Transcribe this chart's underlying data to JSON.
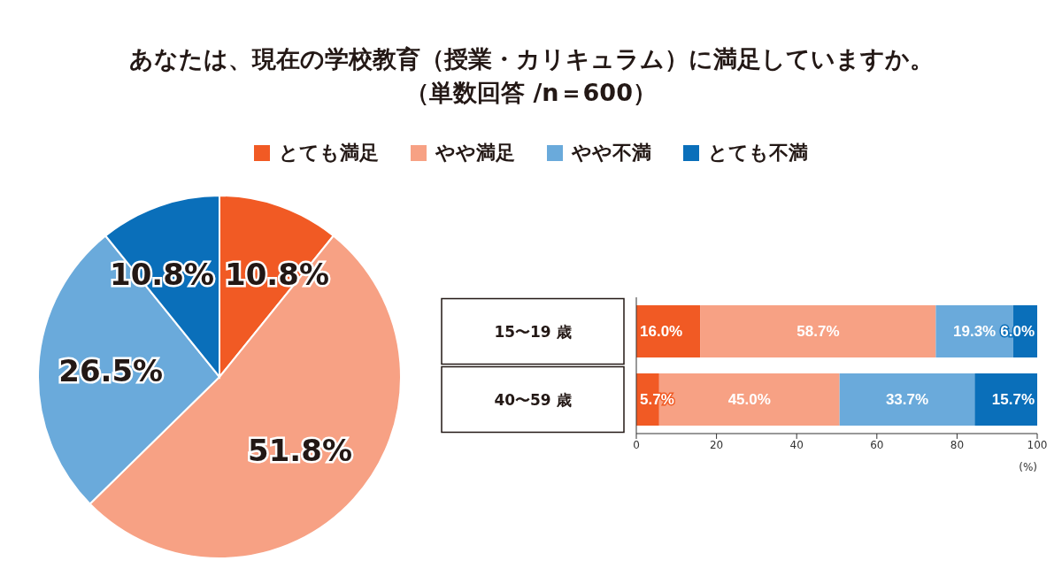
{
  "chart_data": [
    {
      "type": "pie",
      "title": "あなたは、現在の学校教育（授業・カリキュラム）に満足していますか。",
      "subtitle": "（単数回答 /n＝600）",
      "categories": [
        "とても満足",
        "やや満足",
        "やや不満",
        "とても不満"
      ],
      "values": [
        10.8,
        51.8,
        26.5,
        10.8
      ],
      "value_labels": [
        "10.8%",
        "51.8%",
        "26.5%",
        "10.8%"
      ],
      "colors": [
        "#f15a24",
        "#f7a184",
        "#6aaadb",
        "#0a6fba"
      ],
      "legend": "top"
    },
    {
      "type": "bar",
      "orientation": "horizontal",
      "stacked": true,
      "categories": [
        "15〜19 歳",
        "40〜59 歳"
      ],
      "xlabel": "(%)",
      "xlim": [
        0,
        100
      ],
      "xticks": [
        0,
        20,
        40,
        60,
        80,
        100
      ],
      "series": [
        {
          "color": "#f15a24",
          "values": [
            16.0,
            5.7
          ],
          "value_labels": [
            "16.0%",
            "5.7%"
          ]
        },
        {
          "color": "#f7a184",
          "values": [
            58.7,
            45.0
          ],
          "value_labels": [
            "58.7%",
            "45.0%"
          ]
        },
        {
          "color": "#6aaadb",
          "values": [
            19.3,
            33.7
          ],
          "value_labels": [
            "19.3%",
            "33.7%"
          ]
        },
        {
          "color": "#0a6fba",
          "values": [
            6.0,
            15.7
          ],
          "value_labels": [
            "6.0%",
            "15.7%"
          ]
        }
      ]
    }
  ]
}
